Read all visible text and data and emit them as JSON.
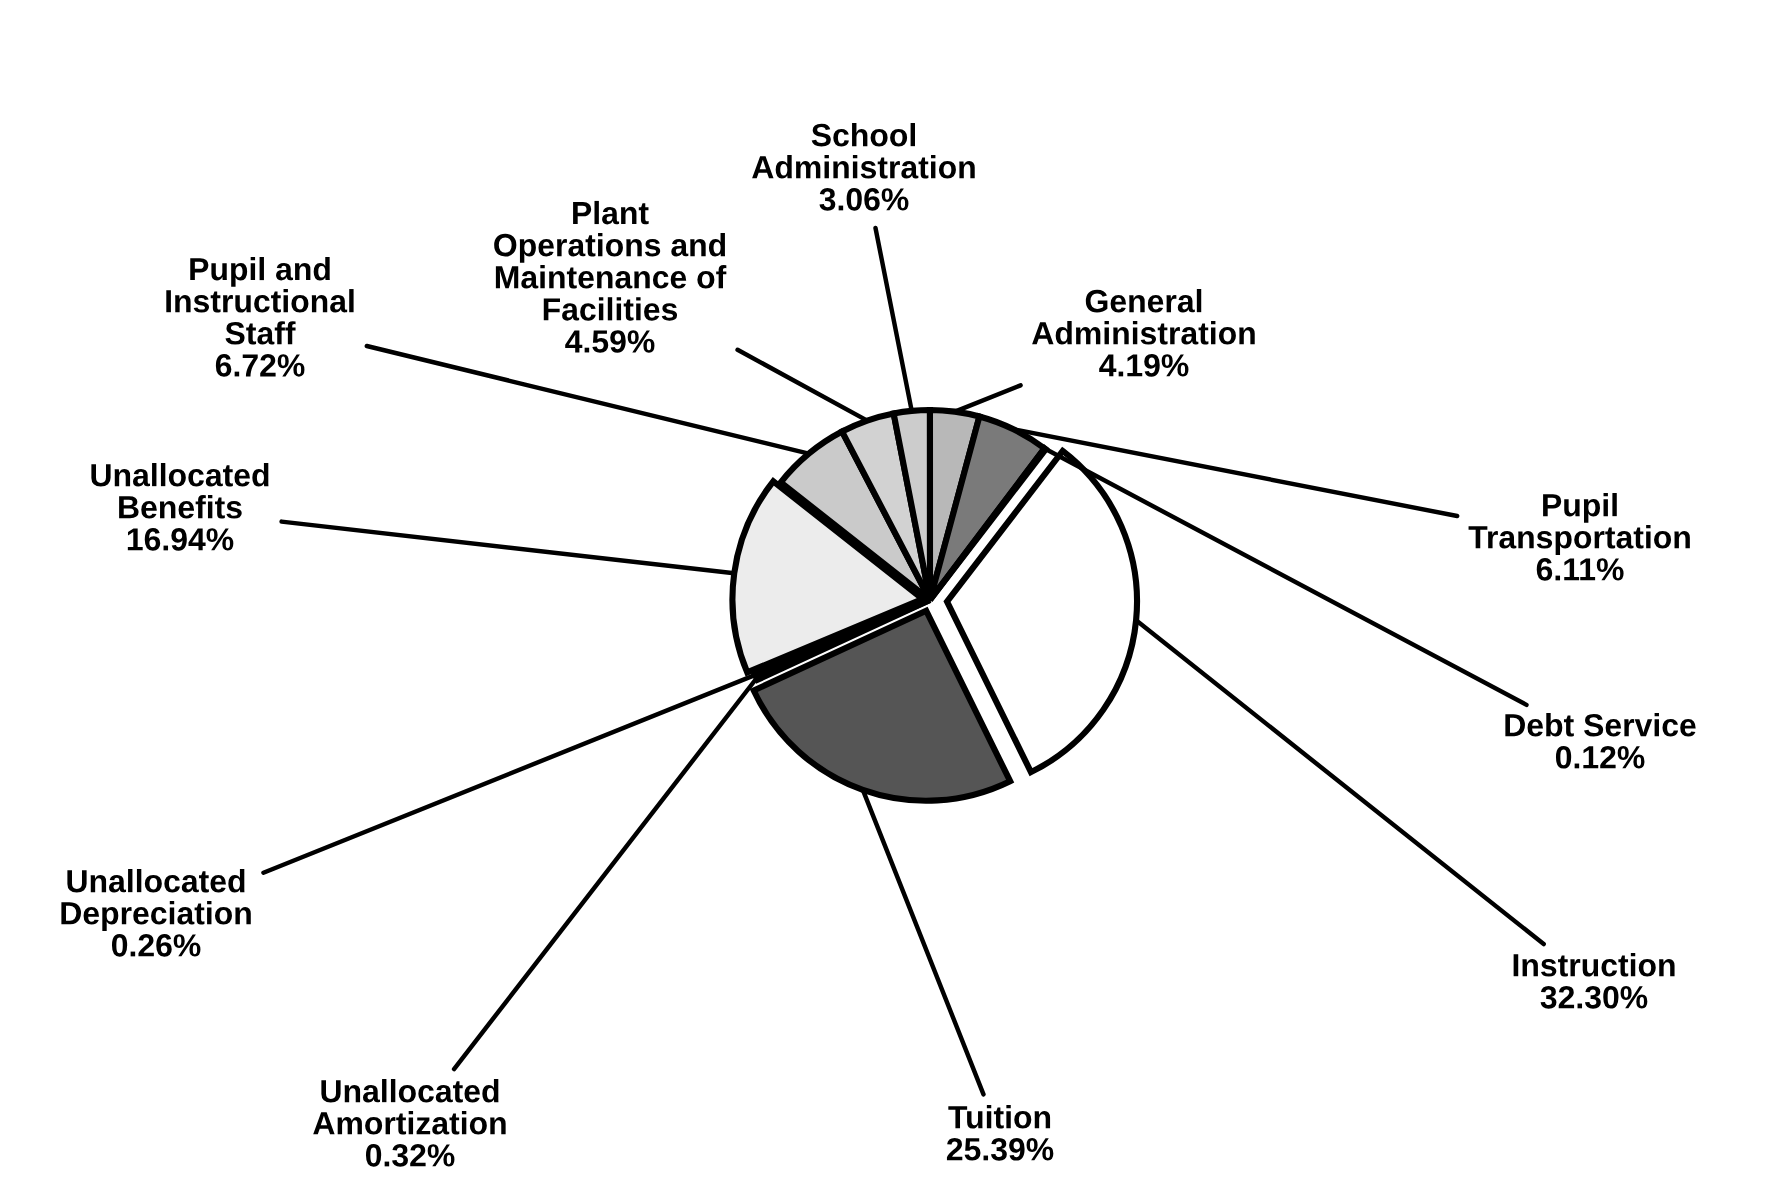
{
  "chart_data": {
    "type": "pie",
    "categories": [
      "Instruction",
      "Tuition",
      "Unallocated\nAmortization",
      "Unallocated\nDepreciation",
      "Unallocated\nBenefits",
      "Pupil and\nInstructional\nStaff",
      "Plant\nOperations and\nMaintenance of\nFacilities",
      "School\nAdministration",
      "General\nAdministration",
      "Pupil\nTransportation",
      "Debt Service"
    ],
    "values": [
      32.3,
      25.39,
      0.32,
      0.26,
      16.94,
      6.72,
      4.59,
      3.06,
      4.19,
      6.11,
      0.12
    ],
    "value_labels": [
      "32.30%",
      "25.39%",
      "0.32%",
      "0.26%",
      "16.94%",
      "6.72%",
      "4.59%",
      "3.06%",
      "4.19%",
      "6.11%",
      "0.12%"
    ],
    "colors": [
      "#ffffff",
      "#555555",
      "#ffffff",
      "#ffffff",
      "#ececec",
      "#cacaca",
      "#d2d2d2",
      "#cccccc",
      "#b8b8b8",
      "#7a7a7a",
      "#444444"
    ],
    "legend": false
  }
}
